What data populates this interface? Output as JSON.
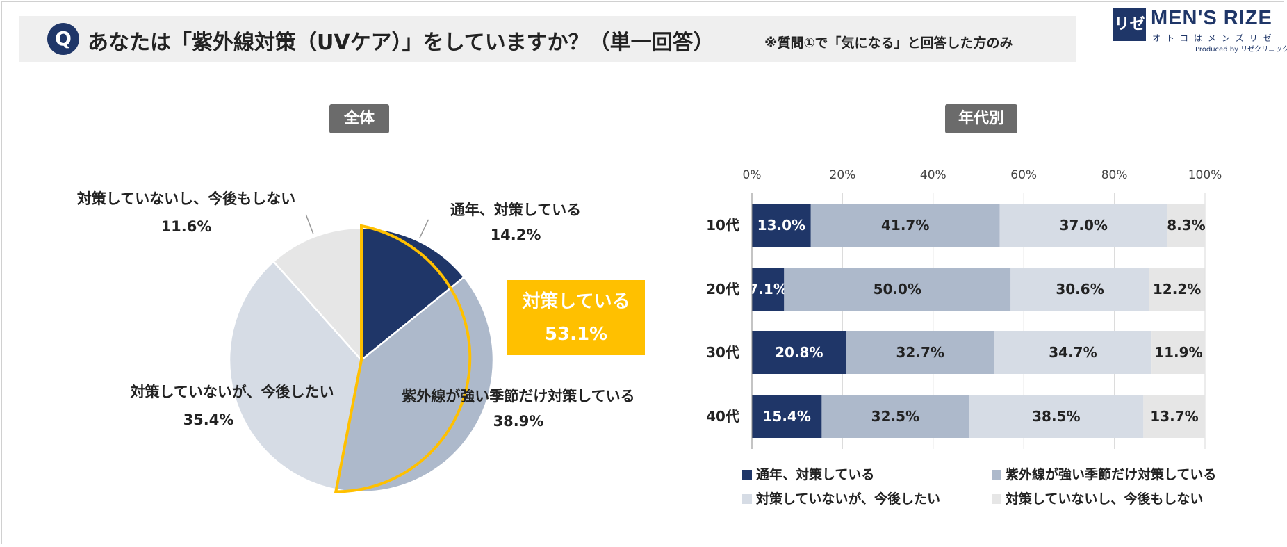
{
  "header": {
    "q_mark": "Q",
    "question": "あなたは「紫外線対策（UVケア）」をしていますか？（単一回答）",
    "note": "※質問①で「気になる」と回答した方のみ"
  },
  "logo": {
    "mark": "リゼ",
    "name": "MEN'S RIZE",
    "tagline": "オトコはメンズリゼ",
    "produced": "Produced by リゼクリニック"
  },
  "colors": {
    "navy": "#1f3668",
    "steel": "#adb9cb",
    "light": "#d6dce5",
    "grey": "#e6e6e6",
    "highlight": "#ffc000"
  },
  "chart_data": [
    {
      "type": "pie",
      "title": "全体",
      "slices": [
        {
          "label": "通年、対策している",
          "value": 14.2
        },
        {
          "label": "紫外線が強い季節だけ対策している",
          "value": 38.9
        },
        {
          "label": "対策していないが、今後したい",
          "value": 35.4
        },
        {
          "label": "対策していないし、今後もしない",
          "value": 11.6
        }
      ],
      "value_labels": [
        "14.2%",
        "38.9%",
        "35.4%",
        "11.6%"
      ],
      "callout": {
        "label": "対策している",
        "value": 53.1,
        "value_label": "53.1%"
      }
    },
    {
      "type": "bar",
      "orientation": "horizontal-stacked-100",
      "title": "年代別",
      "categories": [
        "10代",
        "20代",
        "30代",
        "40代"
      ],
      "series": [
        {
          "name": "通年、対策している",
          "values": [
            13.0,
            7.1,
            20.8,
            15.4
          ]
        },
        {
          "name": "紫外線が強い季節だけ対策している",
          "values": [
            41.7,
            50.0,
            32.7,
            32.5
          ]
        },
        {
          "name": "対策していないが、今後したい",
          "values": [
            37.0,
            30.6,
            34.7,
            38.5
          ]
        },
        {
          "name": "対策していないし、今後もしない",
          "values": [
            8.3,
            12.2,
            11.9,
            13.7
          ]
        }
      ],
      "value_labels": [
        [
          "13.0%",
          "41.7%",
          "37.0%",
          "8.3%"
        ],
        [
          "7.1%",
          "50.0%",
          "30.6%",
          "12.2%"
        ],
        [
          "20.8%",
          "32.7%",
          "34.7%",
          "11.9%"
        ],
        [
          "15.4%",
          "32.5%",
          "38.5%",
          "13.7%"
        ]
      ],
      "xlim": [
        0,
        100
      ],
      "xticks": [
        "0%",
        "20%",
        "40%",
        "60%",
        "80%",
        "100%"
      ],
      "legend": "bottom"
    }
  ]
}
